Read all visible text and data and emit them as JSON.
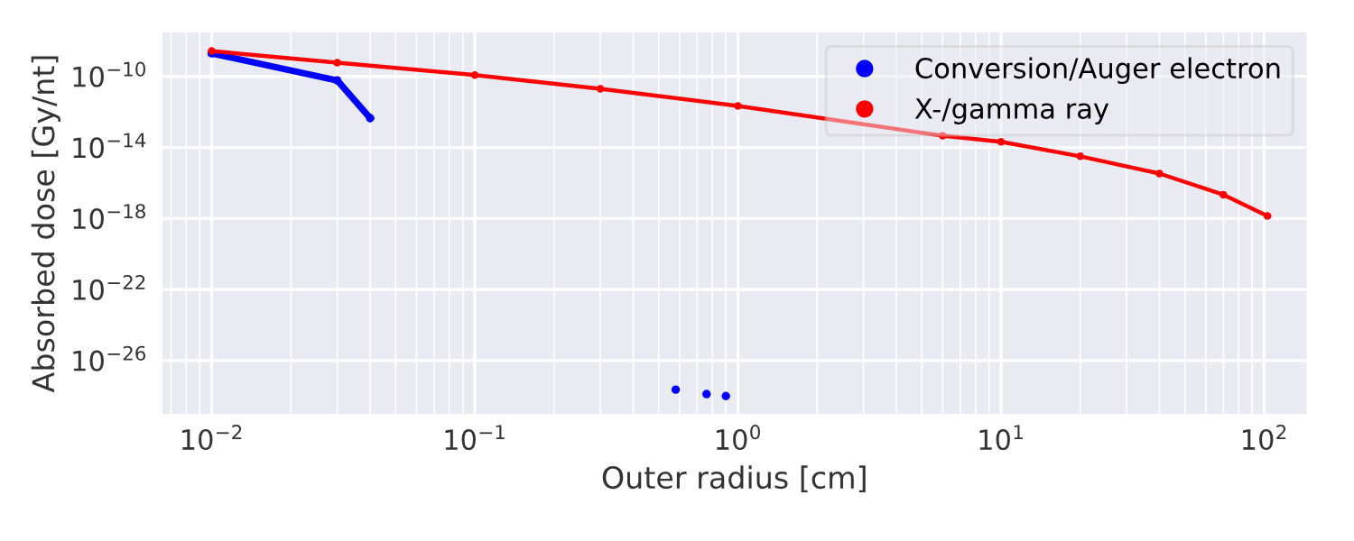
{
  "chart_data": {
    "type": "line",
    "xlabel": "Outer radius [cm]",
    "ylabel": "Absorbed dose [Gy/nt]",
    "log": "xy",
    "grid": true,
    "legend": "top right",
    "marker": "circle",
    "line_style": "solid",
    "xlim": [
      0.0065,
      145
    ],
    "ylim": [
      1e-29,
      3e-08
    ],
    "xticks": [
      {
        "value": 0.01,
        "label": "10$^{−2}$"
      },
      {
        "value": 0.1,
        "label": "10$^{−1}$"
      },
      {
        "value": 1,
        "label": "10$^{0}$"
      },
      {
        "value": 10,
        "label": "10$^{1}$"
      },
      {
        "value": 100,
        "label": "10$^{2}$"
      }
    ],
    "yticks": [
      {
        "value": 1e-26,
        "label": "10$^{−26}$"
      },
      {
        "value": 1e-22,
        "label": "10$^{−22}$"
      },
      {
        "value": 1e-18,
        "label": "10$^{−18}$"
      },
      {
        "value": 1e-14,
        "label": "10$^{−14}$"
      },
      {
        "value": 1e-10,
        "label": "10$^{−10}$"
      }
    ],
    "series": [
      {
        "name": "Conversion/Auger electron",
        "color": "#0000ff",
        "x": [
          0.01,
          0.03,
          0.04,
          0.05,
          0.58,
          0.7,
          0.76,
          0.85,
          0.9
        ],
        "values": [
          2e-09,
          6e-11,
          4.5e-13,
          null,
          2.3e-28,
          null,
          1.3e-28,
          null,
          1e-28
        ]
      },
      {
        "name": "X-/gamma ray",
        "color": "#ff0000",
        "x": [
          0.01,
          0.03,
          0.1,
          0.3,
          1,
          6,
          10,
          20,
          40,
          70,
          103
        ],
        "values": [
          2.7e-09,
          6e-10,
          1.2e-10,
          2e-11,
          2.2e-12,
          4.6e-14,
          2.1e-14,
          3.2e-15,
          3.4e-16,
          2.2e-17,
          1.4e-18
        ]
      }
    ]
  }
}
